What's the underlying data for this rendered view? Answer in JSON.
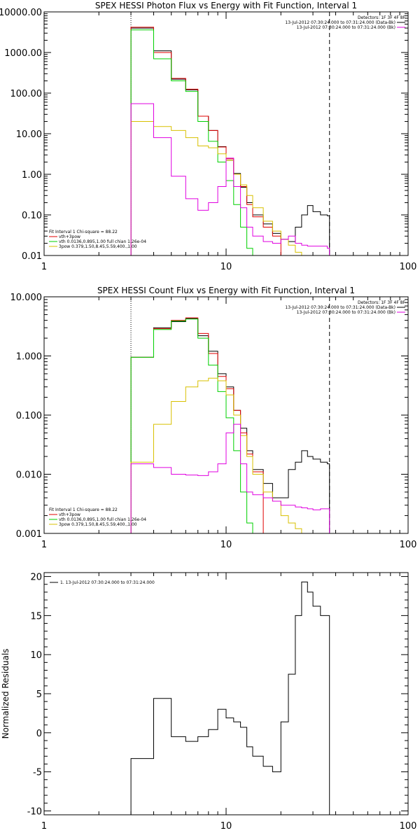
{
  "chart_data": [
    {
      "type": "line",
      "title": "SPEX HESSI Photon Flux vs Energy with Fit Function, Interval 1",
      "xscale": "log",
      "yscale": "log",
      "xlim": [
        1,
        100
      ],
      "ylim": [
        0.01,
        10000
      ],
      "xticks": [
        {
          "v": 1,
          "label": "1"
        },
        {
          "v": 10,
          "label": "10"
        },
        {
          "v": 100,
          "label": "100"
        }
      ],
      "yticks": [
        {
          "v": 0.01,
          "label": "0.01"
        },
        {
          "v": 0.1,
          "label": "0.10"
        },
        {
          "v": 1,
          "label": "1.00"
        },
        {
          "v": 10,
          "label": "10.00"
        },
        {
          "v": 100,
          "label": "100.00"
        },
        {
          "v": 1000,
          "label": "1000.00"
        },
        {
          "v": 10000,
          "label": "10000.00"
        }
      ],
      "vlines": [
        {
          "x": 3.0,
          "style": "dotted",
          "color": "#000000"
        },
        {
          "x": 37.0,
          "style": "dashed",
          "color": "#000000"
        }
      ],
      "legend_top": {
        "header": "Detectors: 1F 3F 4F 8F",
        "entries": [
          {
            "text": "13-Jul-2012 07:30:24.000 to 07:31:24.000 (Data-Bk)",
            "color": "#000000"
          },
          {
            "text": "13-Jul-2012 07:30:24.000 to 07:31:24.000 (Bk)",
            "color": "#e000e0"
          }
        ]
      },
      "legend_bottom": {
        "header": "Fit Interval 1    Chi-square = 88.22",
        "entries": [
          {
            "text": "vth+3pow",
            "color": "#e00000"
          },
          {
            "text": "vth 0.0136,0.895,1.00  full chian 1.26e-04",
            "color": "#00d000"
          },
          {
            "text": "3pow 0.379,1.50,8.45,5.59,400.,1.00",
            "color": "#d8c000"
          }
        ]
      },
      "edges": [
        3.0,
        3.5,
        4.0,
        4.5,
        5.0,
        5.5,
        6.0,
        6.5,
        7.0,
        7.5,
        8.0,
        8.5,
        9.0,
        10.0,
        11.0,
        12.0,
        13.0,
        14.0,
        16.0,
        18.0,
        20.0,
        22.0,
        24.0,
        26.0,
        28.0,
        30.0,
        33.0,
        36.0,
        37.0
      ],
      "series": [
        {
          "name": "Data-Bk",
          "color": "#000000",
          "values": [
            4000,
            4000,
            1100,
            1100,
            220,
            220,
            120,
            120,
            27,
            27,
            12,
            12,
            4.8,
            2.2,
            1.05,
            0.48,
            0.2,
            0.1,
            0.06,
            0.035,
            0.025,
            0.022,
            0.05,
            0.1,
            0.17,
            0.12,
            0.1,
            0.095
          ]
        },
        {
          "name": "vth+3pow",
          "color": "#e00000",
          "values": [
            4200,
            4200,
            1000,
            1000,
            230,
            230,
            125,
            125,
            27,
            27,
            12,
            12,
            4.7,
            2.4,
            1.0,
            0.5,
            0.18,
            0.09,
            0.05,
            0.03,
            null,
            null,
            null,
            null,
            null,
            null,
            null,
            null
          ]
        },
        {
          "name": "vth",
          "color": "#00d000",
          "values": [
            3600,
            3600,
            700,
            700,
            200,
            200,
            110,
            110,
            20,
            20,
            6.5,
            6.5,
            2.0,
            0.7,
            0.18,
            0.05,
            0.015,
            0.009,
            null,
            null,
            null,
            null,
            null,
            null,
            null,
            null,
            null,
            null
          ]
        },
        {
          "name": "3pow",
          "color": "#d8c000",
          "values": [
            20,
            20,
            15,
            15,
            12,
            12,
            8,
            8,
            5,
            5,
            4.5,
            4.5,
            3.2,
            2.2,
            1.0,
            0.55,
            0.3,
            0.15,
            0.07,
            0.04,
            0.025,
            0.018,
            0.012,
            null,
            null,
            null,
            null,
            null
          ]
        },
        {
          "name": "Bk",
          "color": "#e000e0",
          "values": [
            55,
            55,
            8,
            8,
            0.9,
            0.9,
            0.25,
            0.25,
            0.13,
            0.13,
            0.2,
            0.2,
            0.5,
            2.5,
            0.5,
            0.15,
            0.05,
            0.03,
            0.022,
            0.02,
            0.025,
            0.03,
            0.02,
            0.018,
            0.017,
            0.017,
            0.017,
            0.015
          ]
        }
      ]
    },
    {
      "type": "line",
      "title": "SPEX HESSI Count Flux vs Energy with Fit Function, Interval 1",
      "xscale": "log",
      "yscale": "log",
      "xlim": [
        1,
        100
      ],
      "ylim": [
        0.001,
        10
      ],
      "xticks": [
        {
          "v": 1,
          "label": "1"
        },
        {
          "v": 10,
          "label": "10"
        },
        {
          "v": 100,
          "label": "100"
        }
      ],
      "yticks": [
        {
          "v": 0.001,
          "label": "0.001"
        },
        {
          "v": 0.01,
          "label": "0.010"
        },
        {
          "v": 0.1,
          "label": "0.100"
        },
        {
          "v": 1,
          "label": "1.000"
        },
        {
          "v": 10,
          "label": "10.000"
        }
      ],
      "vlines": [
        {
          "x": 3.0,
          "style": "dotted",
          "color": "#000000"
        },
        {
          "x": 37.0,
          "style": "dashed",
          "color": "#000000"
        }
      ],
      "legend_top": {
        "header": "Detectors: 1F 3F 4F 8F",
        "entries": [
          {
            "text": "13-Jul-2012 07:30:24.000 to 07:31:24.000 (Data-Bk)",
            "color": "#000000"
          },
          {
            "text": "13-Jul-2012 07:30:24.000 to 07:31:24.000 (Bk)",
            "color": "#e000e0"
          }
        ]
      },
      "legend_bottom": {
        "header": "Fit Interval 1    Chi-square = 88.22",
        "entries": [
          {
            "text": "vth+3pow",
            "color": "#e00000"
          },
          {
            "text": "vth 0.0136,0.895,1.00  full chian 1.26e-04",
            "color": "#00d000"
          },
          {
            "text": "3pow 0.379,1.50,8.45,5.59,400.,1.00",
            "color": "#d8c000"
          }
        ]
      },
      "edges": [
        3.0,
        3.5,
        4.0,
        4.5,
        5.0,
        5.5,
        6.0,
        6.5,
        7.0,
        7.5,
        8.0,
        8.5,
        9.0,
        10.0,
        11.0,
        12.0,
        13.0,
        14.0,
        16.0,
        18.0,
        20.0,
        22.0,
        24.0,
        26.0,
        28.0,
        30.0,
        33.0,
        36.0,
        37.0
      ],
      "series": [
        {
          "name": "Data-Bk",
          "color": "#000000",
          "values": [
            0.95,
            0.95,
            3.0,
            3.0,
            3.8,
            3.8,
            4.3,
            4.3,
            2.2,
            2.2,
            1.2,
            1.2,
            0.5,
            0.3,
            0.12,
            0.06,
            0.025,
            0.012,
            0.007,
            0.004,
            0.004,
            0.012,
            0.016,
            0.025,
            0.02,
            0.018,
            0.016,
            0.015
          ]
        },
        {
          "name": "vth+3pow",
          "color": "#e00000",
          "values": [
            0.95,
            0.95,
            2.9,
            2.9,
            4.0,
            4.0,
            4.4,
            4.4,
            2.4,
            2.4,
            1.1,
            1.1,
            0.45,
            0.28,
            0.12,
            0.05,
            0.022,
            0.011,
            null,
            null,
            null,
            null,
            null,
            null,
            null,
            null,
            null,
            null
          ]
        },
        {
          "name": "vth",
          "color": "#00d000",
          "values": [
            0.95,
            0.95,
            2.8,
            2.8,
            3.9,
            3.9,
            4.2,
            4.2,
            2.0,
            2.0,
            0.7,
            0.7,
            0.25,
            0.09,
            0.025,
            0.005,
            0.0015,
            0.0008,
            null,
            null,
            null,
            null,
            null,
            null,
            null,
            null,
            null,
            null
          ]
        },
        {
          "name": "3pow",
          "color": "#d8c000",
          "values": [
            0.016,
            0.016,
            0.07,
            0.07,
            0.17,
            0.17,
            0.3,
            0.3,
            0.38,
            0.38,
            0.42,
            0.42,
            0.38,
            0.22,
            0.1,
            0.045,
            0.02,
            0.01,
            0.005,
            0.0035,
            0.002,
            0.0015,
            0.0012,
            0.001,
            null,
            null,
            null,
            null
          ]
        },
        {
          "name": "Bk",
          "color": "#e000e0",
          "values": [
            0.015,
            0.015,
            0.013,
            0.013,
            0.01,
            0.01,
            0.0097,
            0.0097,
            0.0095,
            0.0095,
            0.011,
            0.011,
            0.015,
            0.05,
            0.07,
            0.015,
            0.005,
            0.0045,
            0.004,
            0.0035,
            0.003,
            0.003,
            0.0028,
            0.0027,
            0.0026,
            0.0025,
            0.0026,
            0.0026
          ]
        }
      ]
    },
    {
      "type": "line",
      "title": "",
      "xscale": "log",
      "yscale": "linear",
      "xlim": [
        1,
        100
      ],
      "ylim": [
        -10.5,
        20.5
      ],
      "ylabel": "Normalized Residuals",
      "xticks": [
        {
          "v": 1,
          "label": "1"
        },
        {
          "v": 10,
          "label": "10"
        },
        {
          "v": 100,
          "label": "100"
        }
      ],
      "yticks": [
        {
          "v": -10,
          "label": "-10"
        },
        {
          "v": -5,
          "label": "-5"
        },
        {
          "v": 0,
          "label": "0"
        },
        {
          "v": 5,
          "label": "5"
        },
        {
          "v": 10,
          "label": "10"
        },
        {
          "v": 15,
          "label": "15"
        },
        {
          "v": 20,
          "label": "20"
        }
      ],
      "legend_top": {
        "header": "",
        "entries": [
          {
            "text": "1. 13-Jul-2012 07:30:24.000 to 07:31:24.000",
            "color": "#000000"
          }
        ]
      },
      "edges": [
        3.0,
        3.5,
        4.0,
        4.5,
        5.0,
        5.5,
        6.0,
        6.5,
        7.0,
        7.5,
        8.0,
        8.5,
        9.0,
        10.0,
        11.0,
        12.0,
        13.0,
        14.0,
        16.0,
        18.0,
        20.0,
        22.0,
        24.0,
        26.0,
        28.0,
        30.0,
        33.0,
        36.0,
        37.0
      ],
      "series": [
        {
          "name": "",
          "color": "#000000",
          "values": [
            -3.3,
            -3.3,
            4.4,
            4.4,
            -0.5,
            -0.5,
            -1.1,
            -1.1,
            -0.5,
            -0.5,
            0.4,
            0.4,
            3.0,
            1.9,
            1.4,
            0.7,
            -1.8,
            -3.0,
            -4.3,
            -5.0,
            1.4,
            7.5,
            15.0,
            19.3,
            18.0,
            16.2,
            15.0,
            15.0
          ]
        }
      ]
    }
  ]
}
